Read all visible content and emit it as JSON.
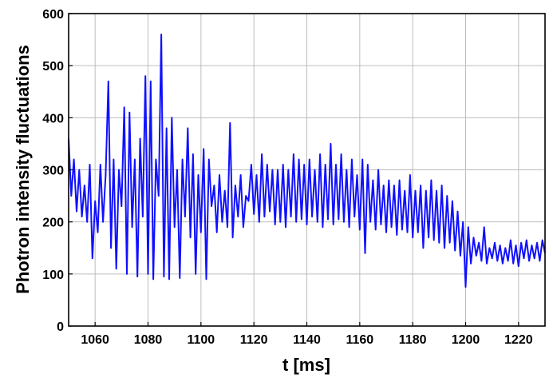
{
  "chart_data": {
    "type": "line",
    "title": "",
    "xlabel": "t [ms]",
    "ylabel": "Photron intensity fluctuations",
    "xlim": [
      1050,
      1230
    ],
    "ylim": [
      0,
      600
    ],
    "xticks": [
      1060,
      1080,
      1100,
      1120,
      1140,
      1160,
      1180,
      1200,
      1220
    ],
    "xtick_labels": [
      "1060",
      "1080",
      "1100",
      "1120",
      "1140",
      "1160",
      "1180",
      "1200",
      "1220"
    ],
    "yticks": [
      0,
      100,
      200,
      300,
      400,
      500,
      600
    ],
    "ytick_labels": [
      "0",
      "100",
      "200",
      "300",
      "400",
      "500",
      "600"
    ],
    "grid": true,
    "legend": "none",
    "series": [
      {
        "color": "#1010ff",
        "x": [
          1050,
          1051,
          1052,
          1053,
          1054,
          1055,
          1056,
          1057,
          1058,
          1059,
          1060,
          1061,
          1062,
          1063,
          1064,
          1065,
          1066,
          1067,
          1068,
          1069,
          1070,
          1071,
          1072,
          1073,
          1074,
          1075,
          1076,
          1077,
          1078,
          1079,
          1080,
          1081,
          1082,
          1083,
          1084,
          1085,
          1086,
          1087,
          1088,
          1089,
          1090,
          1091,
          1092,
          1093,
          1094,
          1095,
          1096,
          1097,
          1098,
          1099,
          1100,
          1101,
          1102,
          1103,
          1104,
          1105,
          1106,
          1107,
          1108,
          1109,
          1110,
          1111,
          1112,
          1113,
          1114,
          1115,
          1116,
          1117,
          1118,
          1119,
          1120,
          1121,
          1122,
          1123,
          1124,
          1125,
          1126,
          1127,
          1128,
          1129,
          1130,
          1131,
          1132,
          1133,
          1134,
          1135,
          1136,
          1137,
          1138,
          1139,
          1140,
          1141,
          1142,
          1143,
          1144,
          1145,
          1146,
          1147,
          1148,
          1149,
          1150,
          1151,
          1152,
          1153,
          1154,
          1155,
          1156,
          1157,
          1158,
          1159,
          1160,
          1161,
          1162,
          1163,
          1164,
          1165,
          1166,
          1167,
          1168,
          1169,
          1170,
          1171,
          1172,
          1173,
          1174,
          1175,
          1176,
          1177,
          1178,
          1179,
          1180,
          1181,
          1182,
          1183,
          1184,
          1185,
          1186,
          1187,
          1188,
          1189,
          1190,
          1191,
          1192,
          1193,
          1194,
          1195,
          1196,
          1197,
          1198,
          1199,
          1200,
          1201,
          1202,
          1203,
          1204,
          1205,
          1206,
          1207,
          1208,
          1209,
          1210,
          1211,
          1212,
          1213,
          1214,
          1215,
          1216,
          1217,
          1218,
          1219,
          1220,
          1221,
          1222,
          1223,
          1224,
          1225,
          1226,
          1227,
          1228,
          1229,
          1230
        ],
        "y": [
          360,
          250,
          320,
          220,
          300,
          210,
          270,
          200,
          310,
          130,
          240,
          180,
          310,
          200,
          290,
          470,
          150,
          320,
          110,
          300,
          230,
          420,
          100,
          410,
          190,
          320,
          95,
          360,
          210,
          480,
          100,
          470,
          90,
          320,
          250,
          560,
          95,
          380,
          90,
          400,
          190,
          300,
          92,
          320,
          210,
          380,
          170,
          330,
          100,
          290,
          180,
          340,
          90,
          320,
          230,
          270,
          180,
          290,
          200,
          260,
          190,
          390,
          170,
          270,
          210,
          290,
          190,
          250,
          240,
          310,
          215,
          290,
          200,
          330,
          210,
          310,
          220,
          300,
          195,
          300,
          200,
          310,
          190,
          300,
          210,
          330,
          200,
          320,
          205,
          310,
          195,
          320,
          210,
          300,
          200,
          330,
          190,
          310,
          205,
          350,
          195,
          310,
          205,
          330,
          200,
          300,
          190,
          320,
          210,
          290,
          185,
          320,
          140,
          310,
          200,
          280,
          185,
          300,
          195,
          270,
          180,
          280,
          190,
          270,
          175,
          280,
          185,
          260,
          180,
          290,
          170,
          260,
          180,
          270,
          150,
          260,
          170,
          280,
          165,
          260,
          160,
          270,
          150,
          250,
          160,
          240,
          145,
          220,
          135,
          200,
          75,
          190,
          120,
          170,
          135,
          160,
          125,
          190,
          120,
          150,
          130,
          160,
          125,
          155,
          120,
          150,
          125,
          165,
          120,
          155,
          115,
          160,
          130,
          165,
          125,
          155,
          130,
          160,
          125,
          165,
          140
        ]
      }
    ]
  }
}
